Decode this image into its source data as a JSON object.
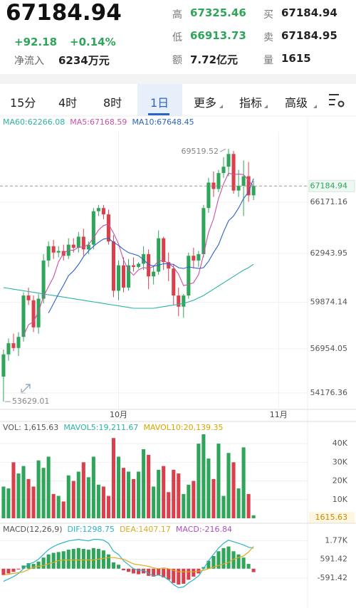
{
  "header": {
    "price": "67184.94",
    "change": "+92.18",
    "change_pct": "+0.14%",
    "inflow_label": "净流入",
    "inflow": "6234万元",
    "stats": [
      {
        "label": "高",
        "value": "67325.46"
      },
      {
        "label": "低",
        "value": "66913.73"
      },
      {
        "label": "额",
        "value": "7.72亿元"
      },
      {
        "label": "买",
        "value": "67184.94"
      },
      {
        "label": "卖",
        "value": "67184.95"
      },
      {
        "label": "量",
        "value": "1615"
      }
    ]
  },
  "tabs": {
    "items": [
      "15分",
      "4时",
      "8时",
      "1日",
      "更多",
      "指标",
      "高级"
    ],
    "active": 3
  },
  "chart_data": [
    {
      "type": "candlestick",
      "up_color": "#2fa55a",
      "down_color": "#d9404b",
      "legend": [
        {
          "text": "MA60:62266.08",
          "color": "#2bb3a3"
        },
        {
          "text": "MA5:67168.59",
          "color": "#cc4fa6"
        },
        {
          "text": "MA10:67648.45",
          "color": "#2a64c8"
        }
      ],
      "ohlc": [
        [
          55200,
          56900,
          53629.01,
          56600
        ],
        [
          56600,
          57600,
          56200,
          57300
        ],
        [
          57300,
          57900,
          56800,
          57000
        ],
        [
          57000,
          58000,
          56500,
          57700
        ],
        [
          57700,
          60500,
          57400,
          60300
        ],
        [
          60300,
          60800,
          59700,
          60000
        ],
        [
          60000,
          60300,
          58000,
          58300
        ],
        [
          58300,
          60400,
          57900,
          60100
        ],
        [
          60100,
          62900,
          59800,
          62500
        ],
        [
          62500,
          63700,
          62100,
          63400
        ],
        [
          63400,
          63800,
          62600,
          63000
        ],
        [
          63000,
          63400,
          62700,
          63100
        ],
        [
          63100,
          63500,
          62500,
          62800
        ],
        [
          62800,
          63900,
          62600,
          63500
        ],
        [
          63500,
          63900,
          63000,
          63300
        ],
        [
          63300,
          64300,
          63000,
          64000
        ],
        [
          64000,
          64500,
          62800,
          63200
        ],
        [
          63200,
          63700,
          62900,
          63500
        ],
        [
          63500,
          65800,
          63200,
          65600
        ],
        [
          65600,
          66000,
          65300,
          65800
        ],
        [
          65800,
          66000,
          65100,
          65400
        ],
        [
          65400,
          65700,
          63500,
          63700
        ],
        [
          63700,
          64100,
          60200,
          60600
        ],
        [
          60600,
          62500,
          60000,
          62200
        ],
        [
          62200,
          62700,
          60500,
          60800
        ],
        [
          60800,
          62600,
          60600,
          62200
        ],
        [
          62200,
          62700,
          61800,
          62100
        ],
        [
          62100,
          62400,
          62000,
          62300
        ],
        [
          62300,
          63400,
          61900,
          62900
        ],
        [
          62900,
          63200,
          60700,
          61500
        ],
        [
          61500,
          62200,
          61000,
          61800
        ],
        [
          61800,
          64400,
          61600,
          63900
        ],
        [
          63900,
          64000,
          61900,
          62400
        ],
        [
          62400,
          63000,
          61200,
          62000
        ],
        [
          62000,
          62300,
          59700,
          60300
        ],
        [
          60300,
          60800,
          59000,
          59600
        ],
        [
          59600,
          60400,
          58900,
          60300
        ],
        [
          60300,
          63000,
          60100,
          62800
        ],
        [
          62800,
          63300,
          62000,
          62500
        ],
        [
          62500,
          63100,
          62100,
          62900
        ],
        [
          62900,
          66000,
          62700,
          65800
        ],
        [
          65800,
          67700,
          65500,
          67400
        ],
        [
          67400,
          68100,
          66500,
          67000
        ],
        [
          67000,
          68200,
          66800,
          68000
        ],
        [
          68000,
          69000,
          67700,
          68400
        ],
        [
          68400,
          69519.52,
          67800,
          69200
        ],
        [
          69200,
          69400,
          66700,
          66900
        ],
        [
          66900,
          68200,
          66500,
          67200
        ],
        [
          67200,
          68800,
          65300,
          67800
        ],
        [
          67800,
          68700,
          66200,
          66600
        ],
        [
          66600,
          67500,
          66300,
          67184.94
        ]
      ],
      "series": [
        {
          "color": "#2bb3a3",
          "values": [
            60800,
            60750,
            60700,
            60650,
            60600,
            60550,
            60500,
            60450,
            60400,
            60350,
            60300,
            60250,
            60200,
            60150,
            60100,
            60050,
            60000,
            59950,
            59900,
            59850,
            59800,
            59750,
            59700,
            59650,
            59600,
            59550,
            59500,
            59500,
            59500,
            59500,
            59500,
            59550,
            59600,
            59650,
            59700,
            59750,
            59800,
            59900,
            60000,
            60150,
            60300,
            60500,
            60700,
            60900,
            61100,
            61300,
            61500,
            61700,
            61900,
            62050,
            62266.08
          ]
        },
        {
          "color": "#cc4fa6",
          "values": [
            null,
            null,
            null,
            null,
            57780,
            58460,
            58660,
            59280,
            60240,
            60860,
            61460,
            62420,
            62960,
            63160,
            63140,
            63340,
            63360,
            63500,
            63920,
            64420,
            64700,
            64800,
            64220,
            63540,
            62540,
            61900,
            61580,
            61920,
            62060,
            62000,
            62120,
            62480,
            62500,
            62320,
            62080,
            61640,
            60920,
            61000,
            61100,
            61620,
            62860,
            64280,
            65120,
            66420,
            67320,
            68000,
            67900,
            67940,
            67900,
            67540,
            67168.59
          ]
        },
        {
          "color": "#2a64c8",
          "values": [
            null,
            null,
            null,
            null,
            null,
            null,
            null,
            null,
            null,
            59200,
            59800,
            60400,
            60950,
            61550,
            61850,
            62250,
            62750,
            63100,
            63400,
            63650,
            63850,
            63900,
            63650,
            63450,
            63200,
            63000,
            62900,
            62800,
            62550,
            62250,
            62150,
            62200,
            62300,
            62300,
            62250,
            62050,
            62000,
            62100,
            62050,
            62000,
            62050,
            62450,
            63000,
            63500,
            64300,
            65000,
            65300,
            65800,
            66400,
            66800,
            67648.45
          ]
        }
      ],
      "xlim": [
        -0.7,
        60.8
      ],
      "xticks": [
        {
          "value": 23,
          "label": "10月"
        },
        {
          "value": 55,
          "label": "11月"
        }
      ],
      "ylim": [
        53500,
        70600
      ],
      "yticks": [
        66171.16,
        62943.95,
        59874.14,
        56954.05,
        54176.36
      ],
      "grid": true
    },
    {
      "type": "bar",
      "legend": [
        {
          "text": "VOL: 1,615.63",
          "color": "#555555"
        },
        {
          "text": "MAVOL5:19,211.67",
          "color": "#2bb3a3"
        },
        {
          "text": "MAVOL10:20,139.35",
          "color": "#d9a400"
        }
      ],
      "values": [
        17000,
        16000,
        30000,
        24000,
        28000,
        21000,
        17000,
        31000,
        27000,
        33000,
        13000,
        12000,
        9000,
        23000,
        20000,
        25000,
        30000,
        22000,
        33000,
        18000,
        17000,
        12000,
        43000,
        33000,
        27000,
        25000,
        21000,
        25000,
        37000,
        34000,
        17000,
        26000,
        28000,
        14000,
        26000,
        24000,
        13000,
        18000,
        20000,
        40000,
        45000,
        32000,
        21000,
        40000,
        12000,
        35000,
        30000,
        16000,
        38000,
        13000,
        1615.63
      ],
      "ylim": [
        0,
        45000
      ],
      "yticks": [
        {
          "value": 40000,
          "label": "40K"
        },
        {
          "value": 30000,
          "label": "30K"
        },
        {
          "value": 20000,
          "label": "20K"
        },
        {
          "value": 10000,
          "label": "10K"
        }
      ]
    },
    {
      "type": "macd",
      "legend": [
        {
          "text": "MACD(12,26,9)",
          "color": "#555555"
        },
        {
          "text": "DIF:1298.75",
          "color": "#2bb3c8"
        },
        {
          "text": "DEA:1407.17",
          "color": "#e0a81e"
        },
        {
          "text": "MACD:-216.84",
          "color": "#b04fc0"
        }
      ],
      "values": [
        -400,
        -300,
        -200,
        -50,
        200,
        350,
        300,
        450,
        700,
        900,
        1000,
        1050,
        1100,
        1200,
        1250,
        1300,
        1250,
        1200,
        1300,
        1250,
        1150,
        900,
        400,
        250,
        -100,
        -200,
        -300,
        -350,
        -300,
        -450,
        -500,
        -400,
        -550,
        -700,
        -900,
        -1000,
        -950,
        -700,
        -500,
        -300,
        100,
        500,
        800,
        1100,
        1300,
        1400,
        1100,
        900,
        700,
        300,
        -216.84
      ],
      "series": [
        {
          "color": "#2bb3c8",
          "values": [
            -800,
            -650,
            -500,
            -300,
            0,
            300,
            400,
            600,
            900,
            1200,
            1400,
            1550,
            1650,
            1750,
            1800,
            1850,
            1800,
            1750,
            1850,
            1850,
            1800,
            1600,
            1100,
            900,
            500,
            250,
            0,
            -100,
            -100,
            -300,
            -450,
            -400,
            -500,
            -700,
            -1000,
            -1200,
            -1150,
            -900,
            -700,
            -450,
            0,
            500,
            900,
            1300,
            1600,
            1800,
            1700,
            1600,
            1500,
            1350,
            1298.75
          ]
        },
        {
          "color": "#e0a81e",
          "values": [
            -400,
            -350,
            -300,
            -250,
            -200,
            -50,
            100,
            150,
            200,
            300,
            400,
            500,
            550,
            550,
            550,
            550,
            550,
            550,
            550,
            600,
            650,
            700,
            700,
            650,
            600,
            450,
            300,
            250,
            200,
            150,
            50,
            0,
            50,
            0,
            -100,
            -200,
            -200,
            -200,
            -200,
            -150,
            -100,
            0,
            100,
            200,
            300,
            400,
            600,
            700,
            800,
            1050,
            1407.17
          ]
        }
      ],
      "ylim": [
        -2300,
        2100
      ],
      "yticks": [
        {
          "value": 1770,
          "label": "1.77K"
        },
        591.42,
        -591.42
      ]
    }
  ]
}
